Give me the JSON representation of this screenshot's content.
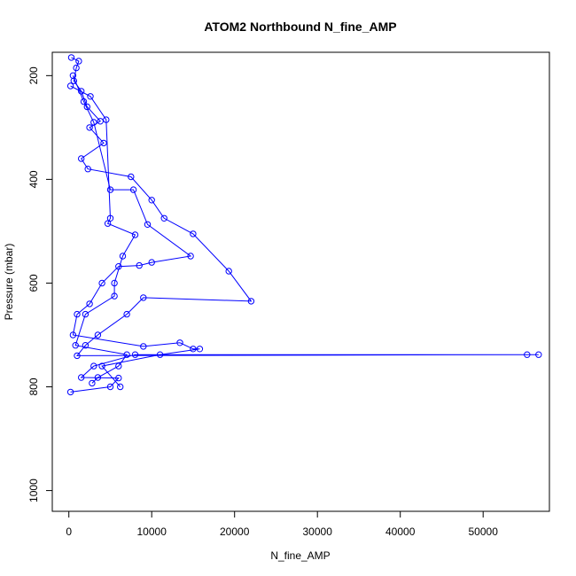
{
  "chart_data": {
    "type": "scatter",
    "title": "ATOM2 Northbound N_fine_AMP",
    "xlabel": "N_fine_AMP",
    "ylabel": "Pressure (mbar)",
    "xlim": [
      -2000,
      58000
    ],
    "ylim": [
      1040,
      155
    ],
    "y_reversed": true,
    "grid": false,
    "legend": "none",
    "colors": {
      "series": "#0000ff",
      "axis": "#000000",
      "background": "#ffffff"
    },
    "marker": "open-circle",
    "x_ticks": [
      0,
      10000,
      20000,
      30000,
      40000,
      50000
    ],
    "y_ticks": [
      200,
      400,
      600,
      800,
      1000
    ],
    "series": [
      {
        "values": [
          {
            "x": 300,
            "y": 165
          },
          {
            "x": 1200,
            "y": 172
          },
          {
            "x": 900,
            "y": 185
          },
          {
            "x": 600,
            "y": 210
          },
          {
            "x": 1500,
            "y": 230
          },
          {
            "x": 2200,
            "y": 260
          },
          {
            "x": 3800,
            "y": 288
          },
          {
            "x": 2500,
            "y": 300
          },
          {
            "x": 4200,
            "y": 330
          },
          {
            "x": 1500,
            "y": 360
          },
          {
            "x": 2300,
            "y": 380
          },
          {
            "x": 7500,
            "y": 395
          },
          {
            "x": 10000,
            "y": 440
          },
          {
            "x": 11500,
            "y": 475
          },
          {
            "x": 15000,
            "y": 505
          },
          {
            "x": 19300,
            "y": 577
          },
          {
            "x": 22000,
            "y": 635
          },
          {
            "x": 9000,
            "y": 628
          },
          {
            "x": 7000,
            "y": 660
          },
          {
            "x": 3500,
            "y": 700
          },
          {
            "x": 2000,
            "y": 720
          },
          {
            "x": 1000,
            "y": 740
          },
          {
            "x": 55300,
            "y": 738
          },
          {
            "x": 56700,
            "y": 738
          },
          {
            "x": 8000,
            "y": 738
          },
          {
            "x": 3000,
            "y": 760
          },
          {
            "x": 1500,
            "y": 782
          },
          {
            "x": 6000,
            "y": 783
          },
          {
            "x": 5000,
            "y": 800
          },
          {
            "x": 200,
            "y": 810
          }
        ]
      },
      {
        "values": [
          {
            "x": 500,
            "y": 200
          },
          {
            "x": 1800,
            "y": 250
          },
          {
            "x": 3000,
            "y": 290
          },
          {
            "x": 5000,
            "y": 420
          },
          {
            "x": 7800,
            "y": 420
          },
          {
            "x": 9500,
            "y": 487
          },
          {
            "x": 14700,
            "y": 548
          },
          {
            "x": 10000,
            "y": 560
          },
          {
            "x": 8500,
            "y": 566
          },
          {
            "x": 6000,
            "y": 568
          },
          {
            "x": 4000,
            "y": 600
          },
          {
            "x": 2500,
            "y": 640
          },
          {
            "x": 1000,
            "y": 660
          },
          {
            "x": 500,
            "y": 700
          },
          {
            "x": 9000,
            "y": 722
          },
          {
            "x": 13400,
            "y": 715
          },
          {
            "x": 15000,
            "y": 727
          },
          {
            "x": 15800,
            "y": 727
          },
          {
            "x": 11000,
            "y": 738
          },
          {
            "x": 4000,
            "y": 760
          },
          {
            "x": 6200,
            "y": 800
          }
        ]
      },
      {
        "values": [
          {
            "x": 200,
            "y": 220
          },
          {
            "x": 2600,
            "y": 240
          },
          {
            "x": 4500,
            "y": 285
          },
          {
            "x": 5000,
            "y": 475
          },
          {
            "x": 4700,
            "y": 485
          },
          {
            "x": 8000,
            "y": 507
          },
          {
            "x": 6500,
            "y": 548
          },
          {
            "x": 5500,
            "y": 600
          },
          {
            "x": 5500,
            "y": 625
          },
          {
            "x": 2000,
            "y": 660
          },
          {
            "x": 800,
            "y": 720
          },
          {
            "x": 7000,
            "y": 738
          },
          {
            "x": 6000,
            "y": 760
          },
          {
            "x": 3500,
            "y": 782
          },
          {
            "x": 2800,
            "y": 793
          }
        ]
      }
    ]
  }
}
